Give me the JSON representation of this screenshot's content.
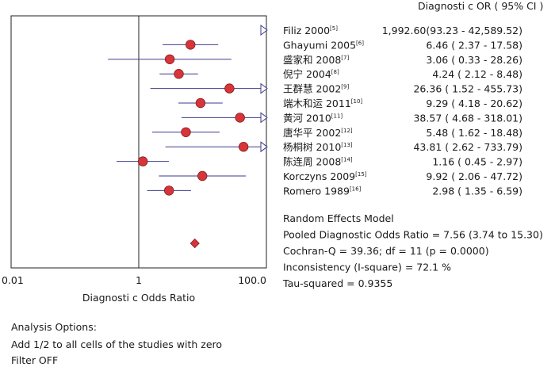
{
  "chart_data": {
    "type": "forest",
    "column_header": "Diagnosti c OR ( 95% CI )",
    "xlabel": "Diagnosti c Odds Ratio",
    "x_scale": "log",
    "xlim": [
      0.01,
      100
    ],
    "ticks": [
      {
        "value": 0.01,
        "label": "0.01"
      },
      {
        "value": 1,
        "label": "1"
      },
      {
        "value": 100,
        "label": "100.0"
      }
    ],
    "studies": [
      {
        "name": "Filiz 2000",
        "ref": "[5]",
        "or": 1992.6,
        "lo": 93.23,
        "hi": 42589.52,
        "ci_text": "1,992.60(93.23 - 42,589.52)"
      },
      {
        "name": "Ghayumi 2005",
        "ref": "[6]",
        "or": 6.46,
        "lo": 2.37,
        "hi": 17.58,
        "ci_text": "6.46 ( 2.37 - 17.58)"
      },
      {
        "name": "盛家和 2008",
        "ref": "[7]",
        "or": 3.06,
        "lo": 0.33,
        "hi": 28.26,
        "ci_text": "3.06 ( 0.33 - 28.26)"
      },
      {
        "name": "倪宁 2004",
        "ref": "[8]",
        "or": 4.24,
        "lo": 2.12,
        "hi": 8.48,
        "ci_text": "4.24 ( 2.12 - 8.48)"
      },
      {
        "name": "王群慧 2002",
        "ref": "[9]",
        "or": 26.36,
        "lo": 1.52,
        "hi": 455.73,
        "ci_text": "26.36 ( 1.52 - 455.73)"
      },
      {
        "name": "端木和运 2011",
        "ref": "[10]",
        "or": 9.29,
        "lo": 4.18,
        "hi": 20.62,
        "ci_text": "9.29 ( 4.18 - 20.62)"
      },
      {
        "name": "黄河 2010",
        "ref": "[11]",
        "or": 38.57,
        "lo": 4.68,
        "hi": 318.01,
        "ci_text": "38.57 ( 4.68 - 318.01)"
      },
      {
        "name": "唐华平 2002",
        "ref": "[12]",
        "or": 5.48,
        "lo": 1.62,
        "hi": 18.48,
        "ci_text": "5.48 ( 1.62 - 18.48)"
      },
      {
        "name": "杨桐树 2010",
        "ref": "[13]",
        "or": 43.81,
        "lo": 2.62,
        "hi": 733.79,
        "ci_text": "43.81 ( 2.62 - 733.79)"
      },
      {
        "name": "陈连周 2008",
        "ref": "[14]",
        "or": 1.16,
        "lo": 0.45,
        "hi": 2.97,
        "ci_text": "1.16 ( 0.45 - 2.97)"
      },
      {
        "name": "Korczyns 2009",
        "ref": "[15]",
        "or": 9.92,
        "lo": 2.06,
        "hi": 47.72,
        "ci_text": "9.92 ( 2.06 - 47.72)"
      },
      {
        "name": "Romero 1989",
        "ref": "[16]",
        "or": 2.98,
        "lo": 1.35,
        "hi": 6.59,
        "ci_text": "2.98 ( 1.35 - 6.59)"
      }
    ],
    "pooled": {
      "or": 7.56,
      "lo": 3.74,
      "hi": 15.3
    },
    "summary_lines": [
      "Random Effects Model",
      "Pooled Diagnostic Odds Ratio = 7.56 (3.74 to 15.30)",
      "Cochran-Q = 39.36; df =  11 (p = 0.0000)",
      "Inconsistency (I-square) = 72.1 %",
      "Tau-squared = 0.9355"
    ],
    "colors": {
      "marker": "#d8343a",
      "ci_line": "#3b3b8f",
      "arrow": "#3b3b8f",
      "axis": "#222222"
    }
  },
  "analysis_options": {
    "heading": "Analysis Options:",
    "lines": [
      "Add 1/2 to all cells of the studies with zero",
      "Filter OFF"
    ]
  }
}
